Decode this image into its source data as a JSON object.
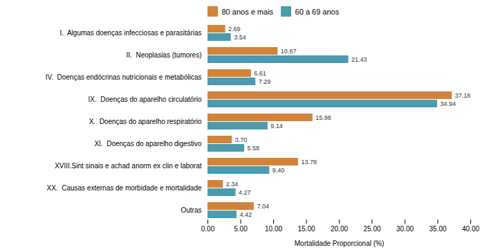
{
  "chart_data": {
    "type": "bar",
    "orientation": "horizontal",
    "categories": [
      "I.  Algumas doenças infecciosas e parasitárias",
      "II.  Neoplasias (tumores)",
      "IV.  Doenças endócrinas nutricionais e metabólicas",
      "IX.  Doenças do aparelho circulatório",
      "X.  Doenças do aparelho respiratório",
      "XI.  Doenças do aparelho digestivo",
      "XVIII.Sint sinais e achad anorm ex clin e laborat",
      "XX.  Causas externas de morbidade e mortalidade",
      "Outras"
    ],
    "series": [
      {
        "name": "80 anos e mais",
        "color": "#D2833A",
        "values": [
          2.69,
          10.67,
          6.61,
          37.18,
          15.98,
          3.7,
          13.78,
          2.34,
          7.04
        ],
        "value_labels": [
          "2.69",
          "10.67",
          "6.61",
          "37.18",
          "15.98",
          "3.70",
          "13.78",
          "2.34",
          "7.04"
        ]
      },
      {
        "name": "60 a 69 anos",
        "color": "#4A9BAD",
        "values": [
          3.54,
          21.43,
          7.29,
          34.94,
          9.14,
          5.58,
          9.4,
          4.27,
          4.42
        ],
        "value_labels": [
          "3.54",
          "21.43",
          "7.29",
          "34.94",
          "9.14",
          "5.58",
          "9.40",
          "4.27",
          "4.42"
        ]
      }
    ],
    "xlabel": "Mortalidade Proporcional (%)",
    "xlim": [
      0,
      40
    ],
    "xticks": [
      {
        "value": 0,
        "label": "0.00"
      },
      {
        "value": 5,
        "label": "5.00"
      },
      {
        "value": 10,
        "label": "10.00"
      },
      {
        "value": 15,
        "label": "15.00"
      },
      {
        "value": 20,
        "label": "20.00"
      },
      {
        "value": 25,
        "label": "25.00"
      },
      {
        "value": 30,
        "label": "30.00"
      },
      {
        "value": 35,
        "label": "35.00"
      },
      {
        "value": 40,
        "label": "40.00"
      }
    ],
    "data_labels": true,
    "legend": "top",
    "grid": false
  }
}
